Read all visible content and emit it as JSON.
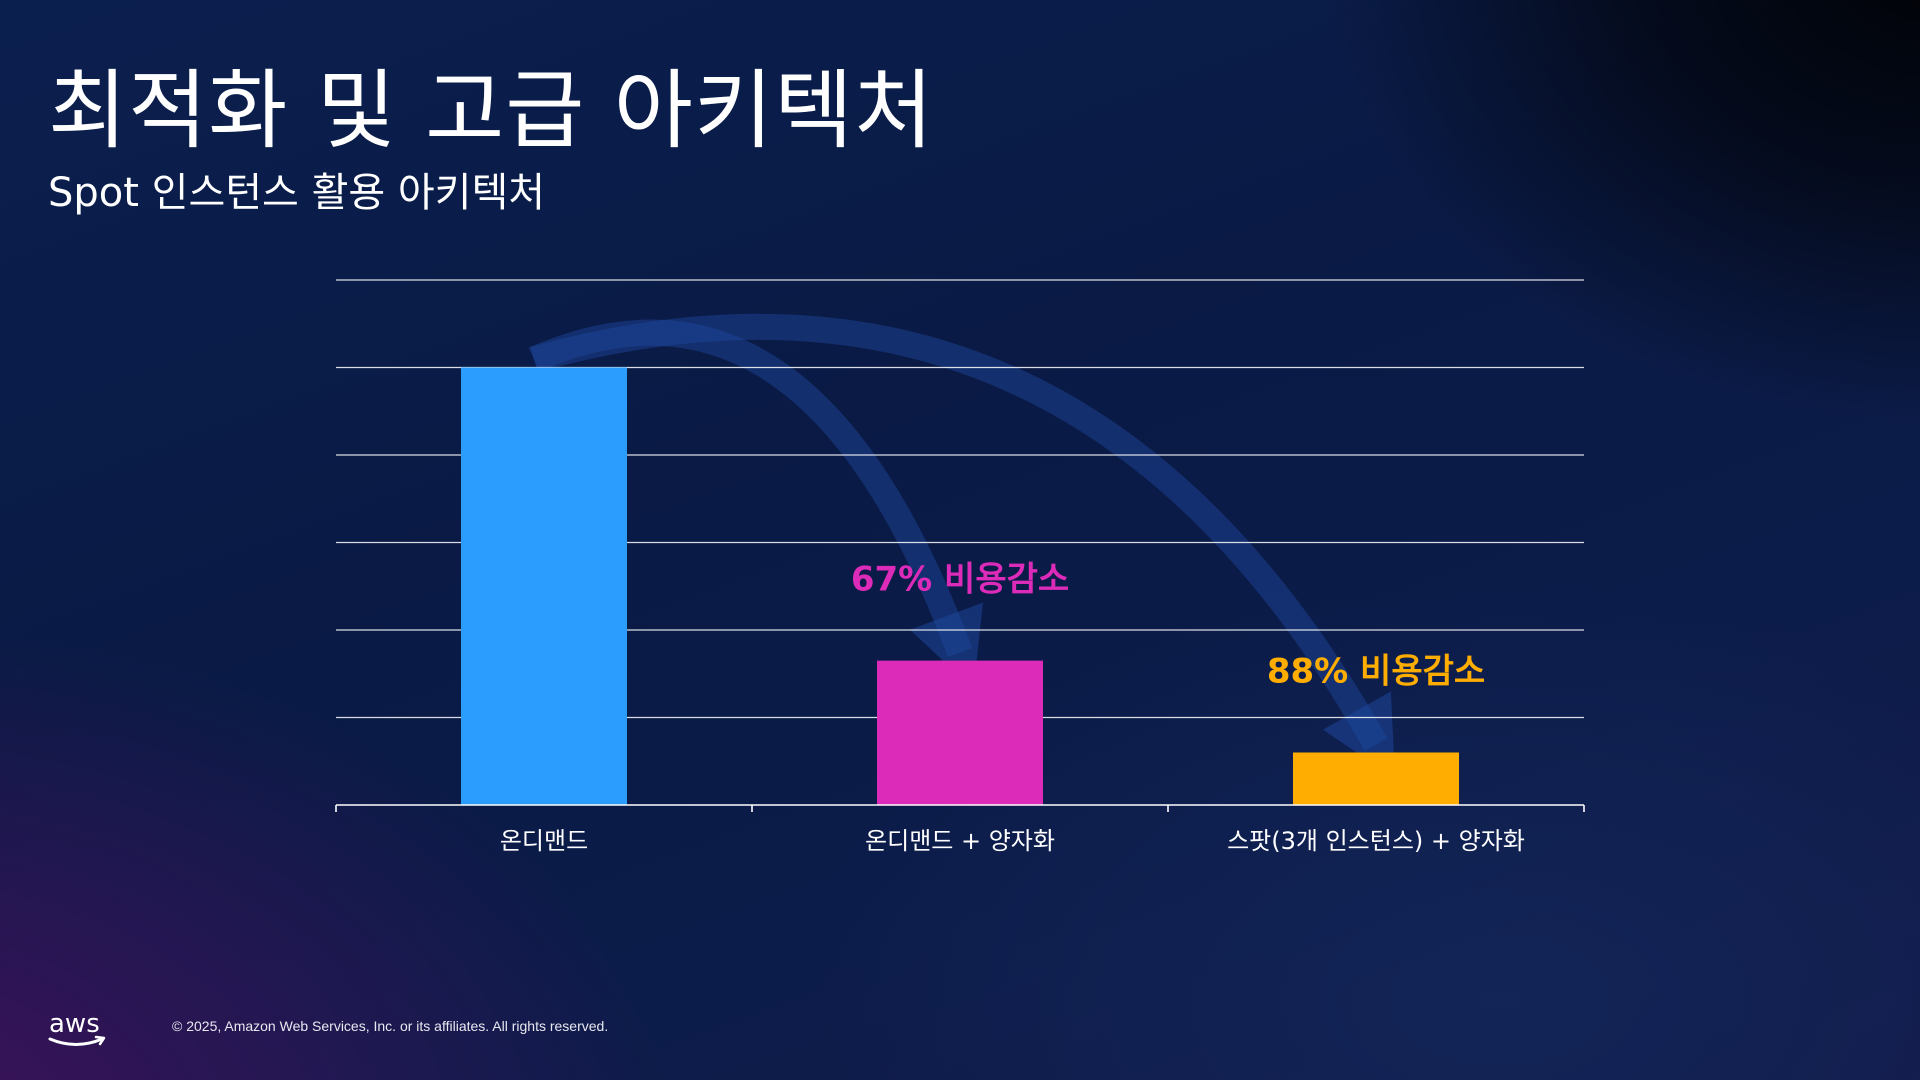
{
  "slide": {
    "title": "최적화 및 고급 아키텍처",
    "subtitle": "Spot 인스턴스 활용 아키텍처",
    "copyright": "© 2025, Amazon Web Services, Inc. or its affiliates. All rights reserved.",
    "logo_text": "aws"
  },
  "chart_data": {
    "type": "bar",
    "categories": [
      "온디맨드",
      "온디맨드 + 양자화",
      "스팟(3개 인스턴스) + 양자화"
    ],
    "values": [
      100,
      33,
      12
    ],
    "colors": [
      "#2a9dff",
      "#dc2bb8",
      "#ffad00"
    ],
    "ylim": [
      0,
      120
    ],
    "grid": true,
    "gridline_count": 6,
    "show_y_tick_labels": false,
    "annotations": [
      {
        "text": "67% 비용감소",
        "bar_index": 1,
        "color": "#dc2bb8"
      },
      {
        "text": "88% 비용감소",
        "bar_index": 2,
        "color": "#ffad00"
      }
    ],
    "arrows": [
      {
        "from_bar": 0,
        "to_bar": 1
      },
      {
        "from_bar": 0,
        "to_bar": 2
      }
    ]
  }
}
